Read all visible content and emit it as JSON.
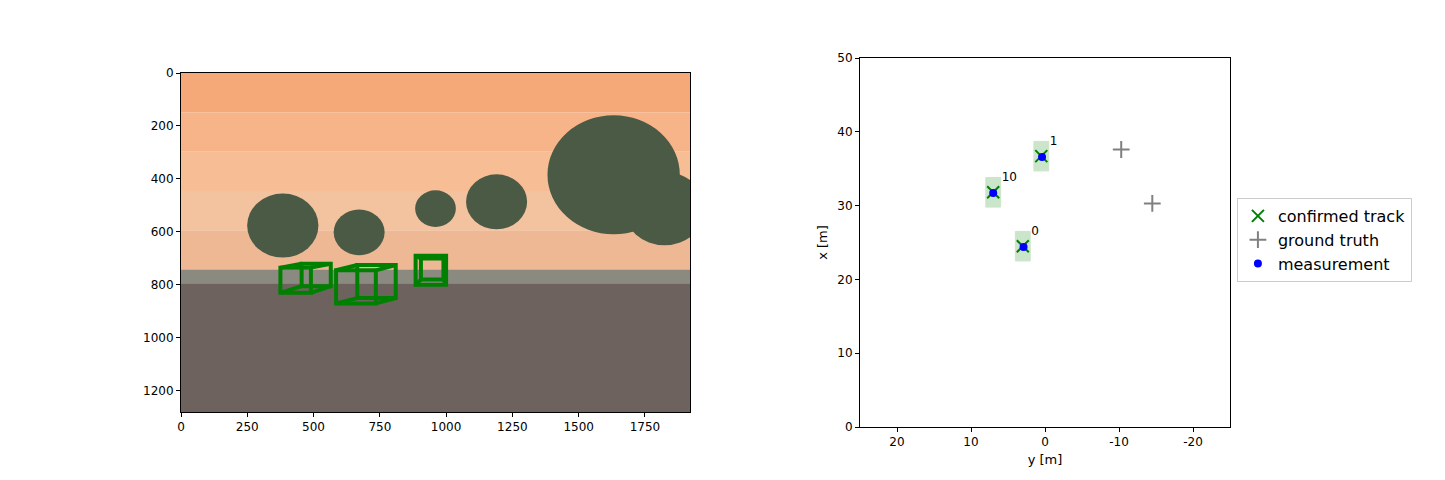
{
  "chart_data": [
    {
      "type": "image",
      "xlim": [
        0,
        1920
      ],
      "ylim": [
        1280,
        0
      ],
      "xticks": [
        0,
        250,
        500,
        750,
        1000,
        1250,
        1500,
        1750
      ],
      "yticks": [
        0,
        200,
        400,
        600,
        800,
        1000,
        1200
      ],
      "color": "#008000",
      "boxes": [
        {
          "front": [
            375,
            735,
            490,
            830
          ],
          "back": [
            455,
            720,
            565,
            805
          ]
        },
        {
          "front": [
            585,
            745,
            735,
            870
          ],
          "back": [
            665,
            725,
            810,
            850
          ]
        },
        {
          "front": [
            885,
            690,
            1000,
            800
          ],
          "back": [
            905,
            700,
            990,
            780
          ]
        }
      ]
    },
    {
      "type": "scatter",
      "x_label": "y [m]",
      "y_label": "x [m]",
      "xlim": [
        25,
        -25
      ],
      "ylim": [
        0,
        50
      ],
      "xticks": [
        20,
        10,
        0,
        -10,
        -20
      ],
      "yticks": [
        0,
        10,
        20,
        30,
        40,
        50
      ],
      "legend": "right",
      "series": [
        {
          "name": "confirmed track",
          "color": "#008000",
          "marker": "x",
          "x": [
            3.0,
            0.5,
            7.0
          ],
          "y": [
            24.5,
            36.7,
            31.8
          ],
          "labels": [
            "0",
            "1",
            "10"
          ],
          "boxes": [
            {
              "x": [
                2.0,
                4.0
              ],
              "y": [
                22.5,
                26.5
              ]
            },
            {
              "x": [
                -0.5,
                1.5
              ],
              "y": [
                34.7,
                38.7
              ]
            },
            {
              "x": [
                6.0,
                8.0
              ],
              "y": [
                29.8,
                33.8
              ]
            }
          ]
        },
        {
          "name": "ground truth",
          "color": "#808080",
          "marker": "+",
          "x": [
            -10.3,
            -14.5
          ],
          "y": [
            37.6,
            30.3
          ]
        },
        {
          "name": "measurement",
          "color": "#0000ff",
          "marker": "dot",
          "x": [
            2.9,
            0.4,
            7.0
          ],
          "y": [
            24.4,
            36.6,
            31.7
          ]
        }
      ]
    }
  ]
}
